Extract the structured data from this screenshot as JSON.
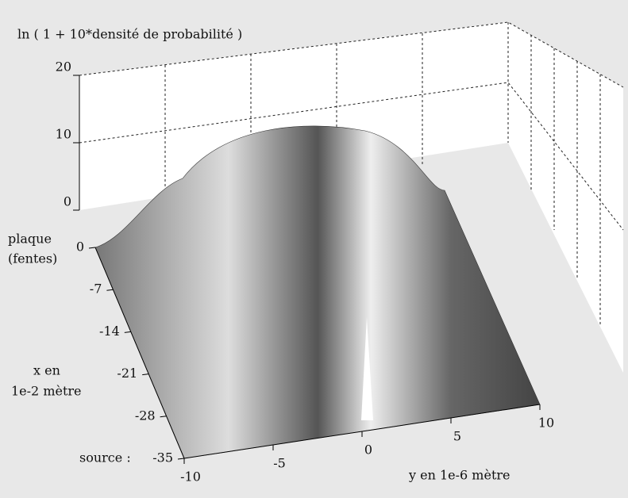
{
  "chart_data": {
    "type": "surface3d",
    "z_label": "ln ( 1 + 10*densité de probabilité )",
    "x_label": [
      "x en",
      "1e-2 mètre"
    ],
    "x_start_label": [
      "plaque",
      "(fentes)"
    ],
    "x_end_label": "source :",
    "y_label": "y en 1e-6  mètre",
    "xlim": [
      -35,
      0
    ],
    "xticks": [
      0,
      -7,
      -14,
      -21,
      -28,
      -35
    ],
    "ylim": [
      -10,
      10
    ],
    "yticks": [
      -10,
      -5,
      0,
      5,
      10
    ],
    "zlim": [
      0,
      20
    ],
    "zticks": [
      0,
      10,
      20
    ],
    "grid": true
  }
}
